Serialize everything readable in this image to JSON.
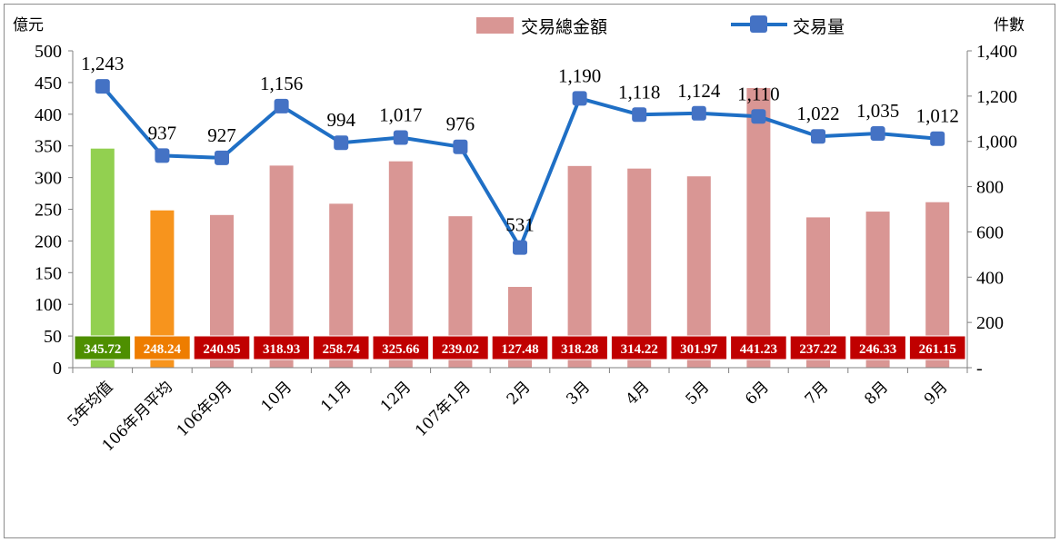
{
  "chart_data": {
    "type": "bar+line",
    "categories": [
      "5年均值",
      "106年月平均",
      "106年9月",
      "10月",
      "11月",
      "12月",
      "107年1月",
      "2月",
      "3月",
      "4月",
      "5月",
      "6月",
      "7月",
      "8月",
      "9月"
    ],
    "series": [
      {
        "name": "交易總金額",
        "type": "bar",
        "axis": "left",
        "values": [
          345.72,
          248.24,
          240.95,
          318.93,
          258.74,
          325.66,
          239.02,
          127.48,
          318.28,
          314.22,
          301.97,
          441.23,
          237.22,
          246.33,
          261.15
        ],
        "labels": [
          "345.72",
          "248.24",
          "240.95",
          "318.93",
          "258.74",
          "325.66",
          "239.02",
          "127.48",
          "318.28",
          "314.22",
          "301.97",
          "441.23",
          "237.22",
          "246.33",
          "261.15"
        ],
        "colors": [
          "#92d050",
          "#f7941d",
          "#d99694",
          "#d99694",
          "#d99694",
          "#d99694",
          "#d99694",
          "#d99694",
          "#d99694",
          "#d99694",
          "#d99694",
          "#d99694",
          "#d99694",
          "#d99694",
          "#d99694"
        ],
        "label_box_colors": [
          "#4e8f00",
          "#ee7d00",
          "#c00000",
          "#c00000",
          "#c00000",
          "#c00000",
          "#c00000",
          "#c00000",
          "#c00000",
          "#c00000",
          "#c00000",
          "#c00000",
          "#c00000",
          "#c00000",
          "#c00000"
        ]
      },
      {
        "name": "交易量",
        "type": "line",
        "axis": "right",
        "values": [
          1243,
          937,
          927,
          1156,
          994,
          1017,
          976,
          531,
          1190,
          1118,
          1124,
          1110,
          1022,
          1035,
          1012
        ],
        "labels": [
          "1,243",
          "937",
          "927",
          "1,156",
          "994",
          "1,017",
          "976",
          "531",
          "1,190",
          "1,118",
          "1,124",
          "1,110",
          "1,022",
          "1,035",
          "1,012"
        ],
        "color": "#1f6fc5",
        "marker_color": "#4472c4"
      }
    ],
    "y_left": {
      "label": "億元",
      "min": 0,
      "max": 500,
      "ticks": [
        0,
        50,
        100,
        150,
        200,
        250,
        300,
        350,
        400,
        450,
        500
      ],
      "tick_labels": [
        "0",
        "50",
        "100",
        "150",
        "200",
        "250",
        "300",
        "350",
        "400",
        "450",
        "500"
      ]
    },
    "y_right": {
      "label": "件數",
      "min": 0,
      "max": 1400,
      "ticks": [
        0,
        200,
        400,
        600,
        800,
        1000,
        1200,
        1400
      ],
      "tick_labels": [
        "-",
        "200",
        "400",
        "600",
        "800",
        "1,000",
        "1,200",
        "1,400"
      ]
    },
    "grid": false,
    "legend_position": "top-right"
  }
}
